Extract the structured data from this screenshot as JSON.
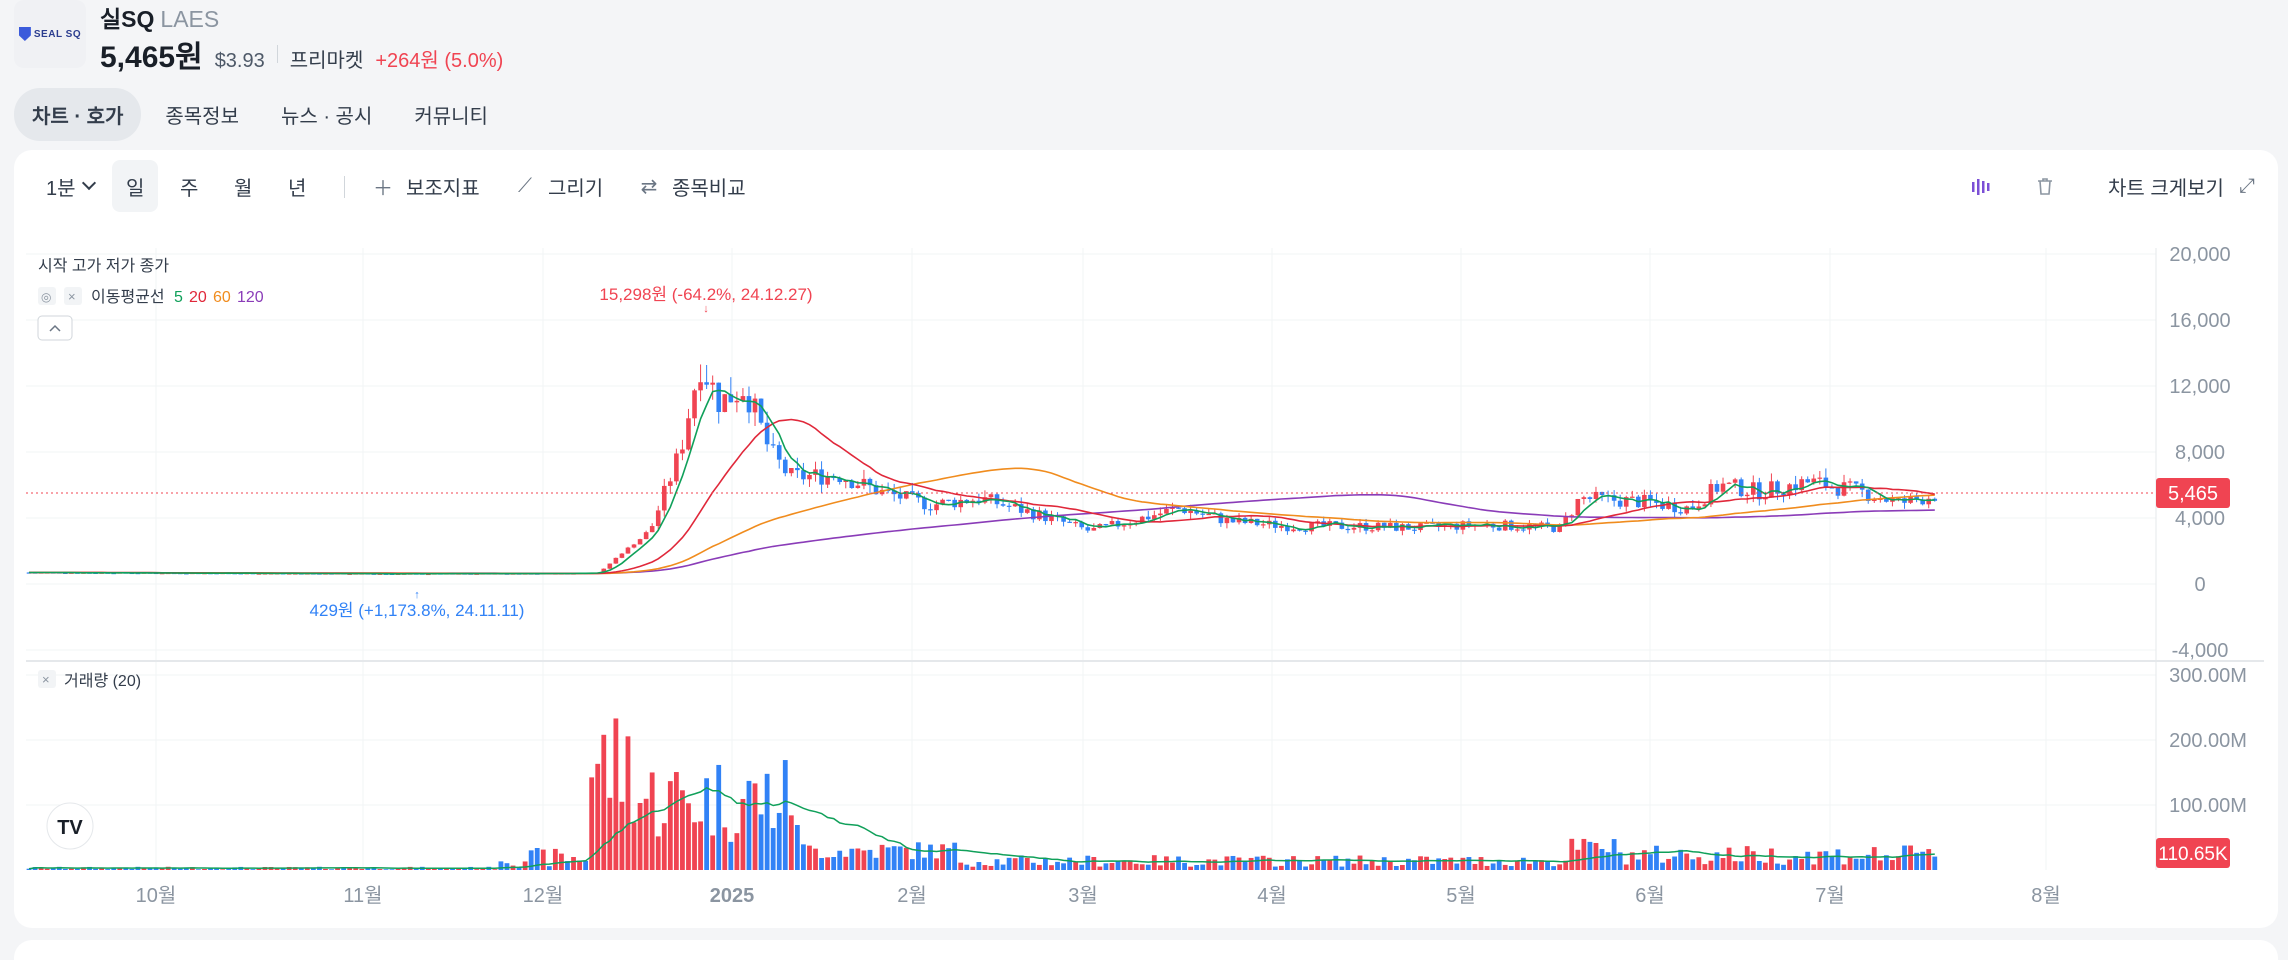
{
  "stock": {
    "name": "실SQ",
    "ticker": "LAES",
    "price": "5,465원",
    "price_usd": "$3.93",
    "session": "프리마켓",
    "change": "+264원 (5.0%)",
    "logo_text": "SEAL SQ"
  },
  "tabs": [
    "차트 · 호가",
    "종목정보",
    "뉴스 · 공시",
    "커뮤니티"
  ],
  "toolbar": {
    "interval": "1분",
    "periods": [
      "일",
      "주",
      "월",
      "년"
    ],
    "indicators": "보조지표",
    "draw": "그리기",
    "compare": "종목비교",
    "expand": "차트 크게보기"
  },
  "legend": {
    "ohlc": "시작 고가 저가 종가",
    "ma_label": "이동평균선",
    "ma_periods": [
      "5",
      "20",
      "60",
      "120"
    ],
    "volume_label": "거래량 (20)"
  },
  "colors": {
    "up": "#f04452",
    "down": "#3182f6",
    "ma5": "#10a05a",
    "ma20": "#e0283a",
    "ma60": "#f08c1e",
    "ma120": "#8a3cb8",
    "vol_ma": "#10a05a"
  },
  "chart_data": {
    "type": "candlestick",
    "price_axis": {
      "ylim": [
        -4000,
        20000
      ],
      "ticks": [
        "20,000",
        "16,000",
        "12,000",
        "8,000",
        "4,000",
        "0",
        "-4,000"
      ]
    },
    "volume_axis": {
      "ylim": [
        0,
        300
      ],
      "unit": "M",
      "ticks": [
        "300.00M",
        "200.00M",
        "100.00M"
      ]
    },
    "x_labels": [
      "10월",
      "11월",
      "12월",
      "2025",
      "2월",
      "3월",
      "4월",
      "5월",
      "6월",
      "7월",
      "8월"
    ],
    "current_price_label": "5,465",
    "current_volume_label": "110.65K",
    "annotations": {
      "high": "15,298원 (-64.2%, 24.12.27)",
      "low": "429원 (+1,173.8%, 24.11.11)"
    },
    "key_points": [
      {
        "date": "24.09",
        "close": 650
      },
      {
        "date": "24.11.11",
        "low": 429
      },
      {
        "date": "24.12.16",
        "close": 2000
      },
      {
        "date": "24.12.27",
        "high": 15298
      },
      {
        "date": "25.01.15",
        "close": 6500
      },
      {
        "date": "25.03.03",
        "close": 3100
      },
      {
        "date": "25.05.20",
        "close": 3500
      },
      {
        "date": "25.06.10",
        "close": 5800
      },
      {
        "date": "25.07.15",
        "close": 5465
      }
    ]
  }
}
